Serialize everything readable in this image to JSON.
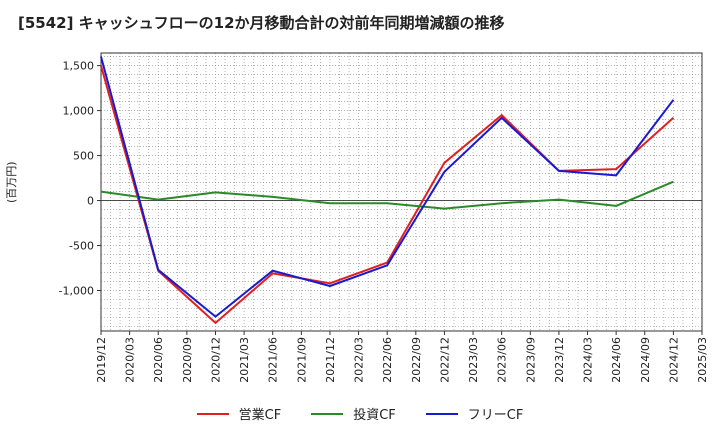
{
  "title": "[5542]  キャッシュフローの12か月移動合計の対前年同期増減額の推移",
  "colors": {
    "operating": "#e02020",
    "investing": "#2a8a2a",
    "free": "#1a1ad0"
  },
  "chart_data": {
    "type": "line",
    "title": "[5542]  キャッシュフローの12か月移動合計の対前年同期増減額の推移",
    "ylabel": "(百万円)",
    "xlabel": "",
    "ylim": [
      -1450,
      1640
    ],
    "yticks": [
      1500,
      1000,
      500,
      0,
      -500,
      -1000
    ],
    "ytick_labels": [
      "1,500",
      "1,000",
      "500",
      "0",
      "-500",
      "-1,000"
    ],
    "x_tick_labels": [
      "2019/12",
      "2020/03",
      "2020/06",
      "2020/09",
      "2020/12",
      "2021/03",
      "2021/06",
      "2021/09",
      "2021/12",
      "2022/03",
      "2022/06",
      "2022/09",
      "2022/12",
      "2023/03",
      "2023/06",
      "2023/09",
      "2023/12",
      "2024/03",
      "2024/06",
      "2024/09",
      "2024/12",
      "2025/03"
    ],
    "grid": true,
    "legend_position": "bottom",
    "series": [
      {
        "name": "営業CF",
        "x": [
          "2019/12",
          "2020/06",
          "2020/12",
          "2021/06",
          "2021/12",
          "2022/06",
          "2022/12",
          "2023/06",
          "2023/12",
          "2024/06",
          "2024/12"
        ],
        "values": [
          1500,
          -780,
          -1360,
          -810,
          -920,
          -690,
          420,
          950,
          330,
          350,
          920
        ]
      },
      {
        "name": "投資CF",
        "x": [
          "2019/12",
          "2020/06",
          "2020/12",
          "2021/06",
          "2021/12",
          "2022/06",
          "2022/12",
          "2023/06",
          "2023/12",
          "2024/06",
          "2024/12"
        ],
        "values": [
          100,
          10,
          90,
          40,
          -30,
          -30,
          -90,
          -30,
          10,
          -60,
          210
        ]
      },
      {
        "name": "フリーCF",
        "x": [
          "2019/12",
          "2020/06",
          "2020/12",
          "2021/06",
          "2021/12",
          "2022/06",
          "2022/12",
          "2023/06",
          "2023/12",
          "2024/06",
          "2024/12"
        ],
        "values": [
          1600,
          -770,
          -1290,
          -780,
          -950,
          -720,
          320,
          920,
          330,
          280,
          1120
        ]
      }
    ]
  }
}
